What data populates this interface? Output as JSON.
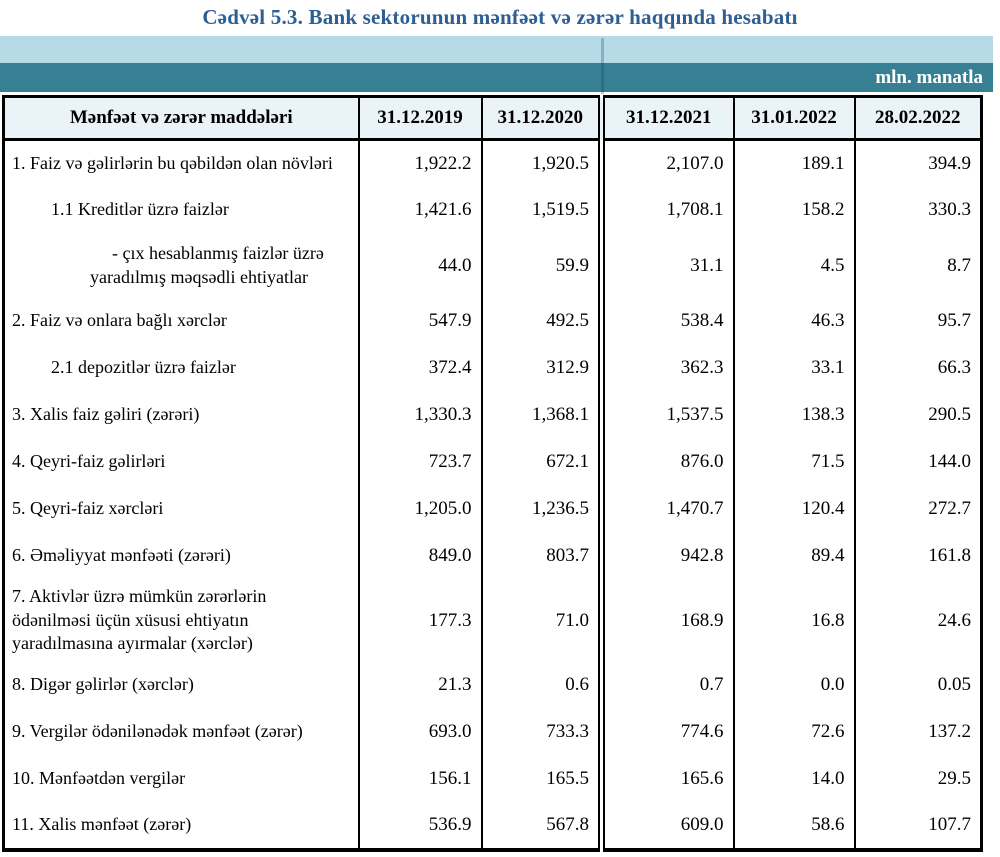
{
  "title": "Cədvəl 5.3. Bank sektorunun mənfəət və zərər haqqında hesabatı",
  "unit_label": "mln. manatla",
  "colors": {
    "title_text": "#2d5e94",
    "band_light": "#b7dbe6",
    "band_teal": "#377f93",
    "header_bg": "#e9f3f8",
    "unit_text": "#ffffff",
    "border": "#000000"
  },
  "table": {
    "header": {
      "label_col": "Mənfəət və zərər maddələri",
      "date_cols": [
        "31.12.2019",
        "31.12.2020",
        "31.12.2021",
        "31.01.2022",
        "28.02.2022"
      ]
    },
    "rows": [
      {
        "label": "1. Faiz və gəlirlərin bu qəbildən olan növləri",
        "values": [
          "1,922.2",
          "1,920.5",
          "2,107.0",
          "189.1",
          "394.9"
        ]
      },
      {
        "label": "1.1 Kreditlər üzrə faizlər",
        "values": [
          "1,421.6",
          "1,519.5",
          "1,708.1",
          "158.2",
          "330.3"
        ]
      },
      {
        "label": "-  çıx hesablanmış faizlər üzrə",
        "label2": "yaradılmış məqsədli ehtiyatlar",
        "values": [
          "44.0",
          "59.9",
          "31.1",
          "4.5",
          "8.7"
        ]
      },
      {
        "label": "2. Faiz və onlara bağlı xərclər",
        "values": [
          "547.9",
          "492.5",
          "538.4",
          "46.3",
          "95.7"
        ]
      },
      {
        "label": "2.1 depozitlər üzrə faizlər",
        "values": [
          "372.4",
          "312.9",
          "362.3",
          "33.1",
          "66.3"
        ]
      },
      {
        "label": "3. Xalis faiz gəliri (zərəri)",
        "values": [
          "1,330.3",
          "1,368.1",
          "1,537.5",
          "138.3",
          "290.5"
        ]
      },
      {
        "label": "4. Qeyri-faiz gəlirləri",
        "values": [
          "723.7",
          "672.1",
          "876.0",
          "71.5",
          "144.0"
        ]
      },
      {
        "label": "5. Qeyri-faiz xərcləri",
        "values": [
          "1,205.0",
          "1,236.5",
          "1,470.7",
          "120.4",
          "272.7"
        ]
      },
      {
        "label": "6. Əməliyyat mənfəəti (zərəri)",
        "values": [
          "849.0",
          "803.7",
          "942.8",
          "89.4",
          "161.8"
        ]
      },
      {
        "label": "7. Aktivlər üzrə mümkün zərərlərin ödənilməsi üçün xüsusi ehtiyatın yaradılmasına ayırmalar (xərclər)",
        "values": [
          "177.3",
          "71.0",
          "168.9",
          "16.8",
          "24.6"
        ]
      },
      {
        "label": "8. Digər gəlirlər (xərclər)",
        "values": [
          "21.3",
          "0.6",
          "0.7",
          "0.0",
          "0.05"
        ]
      },
      {
        "label": "9. Vergilər ödənilənədək mənfəət (zərər)",
        "values": [
          "693.0",
          "733.3",
          "774.6",
          "72.6",
          "137.2"
        ]
      },
      {
        "label": "10. Mənfəətdən vergilər",
        "values": [
          "156.1",
          "165.5",
          "165.6",
          "14.0",
          "29.5"
        ]
      },
      {
        "label": "11. Xalis mənfəət (zərər)",
        "values": [
          "536.9",
          "567.8",
          "609.0",
          "58.6",
          "107.7"
        ]
      }
    ]
  }
}
